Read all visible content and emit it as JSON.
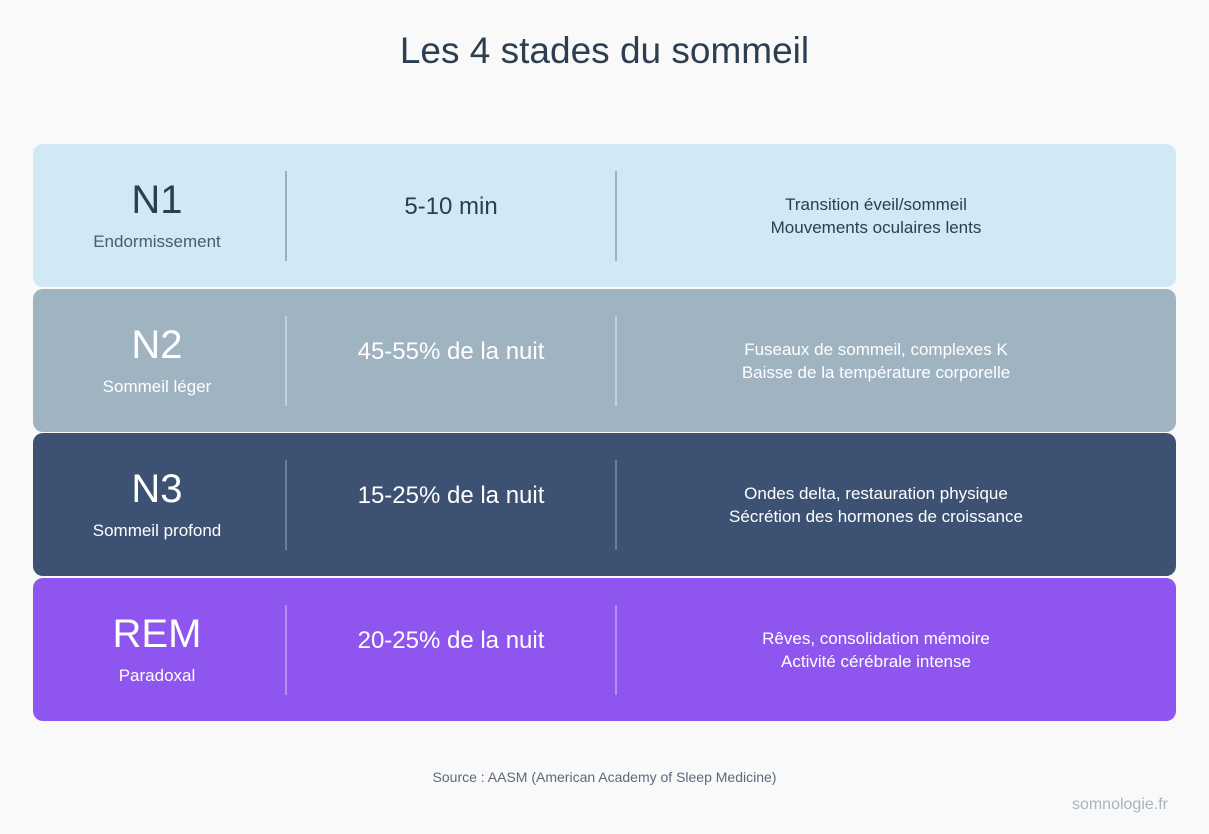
{
  "header": {
    "title": "Les 4 stades du sommeil"
  },
  "rows": [
    {
      "stage": "N1",
      "name": "Endormissement",
      "duration": "5-10 min",
      "description": [
        "Transition éveil/sommeil",
        "Mouvements oculaires lents"
      ]
    },
    {
      "stage": "N2",
      "name": "Sommeil léger",
      "duration": "45-55% de la nuit",
      "description": [
        "Fuseaux de sommeil, complexes K",
        "Baisse de la température corporelle"
      ]
    },
    {
      "stage": "N3",
      "name": "Sommeil profond",
      "duration": "15-25% de la nuit",
      "description": [
        "Ondes delta, restauration physique",
        "Sécrétion des hormones de croissance"
      ]
    },
    {
      "stage": "REM",
      "name": "Paradoxal",
      "duration": "20-25% de la nuit",
      "description": [
        "Rêves, consolidation mémoire",
        "Activité cérébrale intense"
      ]
    }
  ],
  "footer": {
    "source": "Source : AASM (American Academy of Sleep Medicine)",
    "watermark": "somnologie.fr"
  }
}
